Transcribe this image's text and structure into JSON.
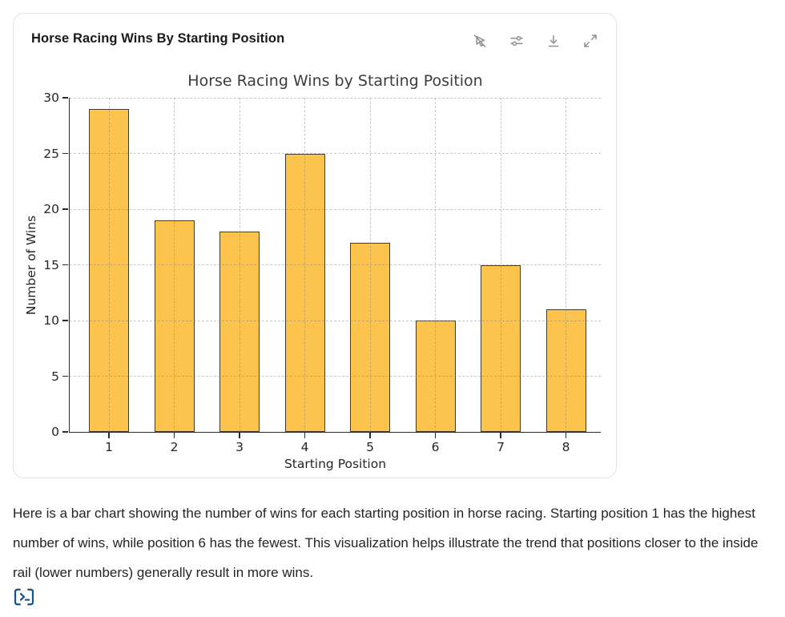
{
  "card": {
    "title": "Horse Racing Wins By Starting Position",
    "toolbar": [
      {
        "icon": "cursor-slash-icon",
        "label": "Toggle interactivity"
      },
      {
        "icon": "sliders-icon",
        "label": "Chart settings"
      },
      {
        "icon": "download-icon",
        "label": "Download"
      },
      {
        "icon": "expand-icon",
        "label": "Expand"
      }
    ]
  },
  "chart_data": {
    "type": "bar",
    "title": "Horse Racing Wins by Starting Position",
    "categories": [
      "1",
      "2",
      "3",
      "4",
      "5",
      "6",
      "7",
      "8"
    ],
    "values": [
      29,
      19,
      18,
      25,
      17,
      10,
      15,
      11
    ],
    "xlabel": "Starting Position",
    "ylabel": "Number of Wins",
    "ylim": [
      0,
      30
    ],
    "ytick_step": 5,
    "grid": true,
    "legend": false,
    "bar_color": "#FCC44D",
    "bar_edge_color": "#433d2b"
  },
  "message": {
    "text": "Here is a bar chart showing the number of wins for each starting position in horse racing. Starting position 1 has the highest number of wins, while position 6 has the fewest. This visualization helps illustrate the trend that positions closer to the inside rail (lower numbers) generally result in more wins."
  },
  "footer": {
    "icon": "code-terminal-icon",
    "accent_color": "#15538E",
    "icon_gray": "#909090"
  }
}
